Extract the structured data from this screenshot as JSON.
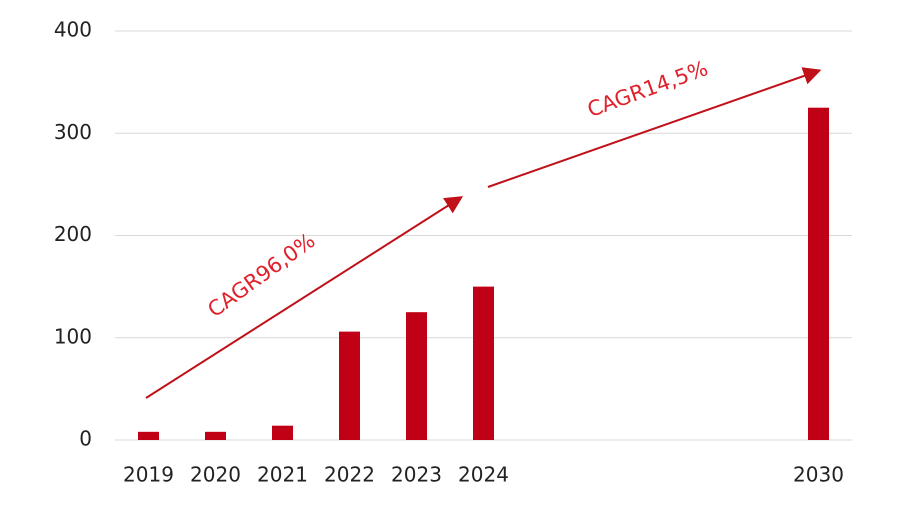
{
  "chart_data": {
    "type": "bar",
    "categories": [
      "2019",
      "2020",
      "2021",
      "2022",
      "2023",
      "2024",
      null,
      null,
      null,
      null,
      "2030"
    ],
    "values": [
      8,
      8,
      14,
      106,
      125,
      150,
      null,
      null,
      null,
      null,
      325
    ],
    "color": "#c00014",
    "ylim": [
      0,
      400
    ],
    "yticks": [
      0,
      100,
      200,
      300,
      400
    ],
    "grid": true,
    "annotations": [
      {
        "text": "CAGR96,0%"
      },
      {
        "text": "CAGR14,5%"
      }
    ]
  }
}
